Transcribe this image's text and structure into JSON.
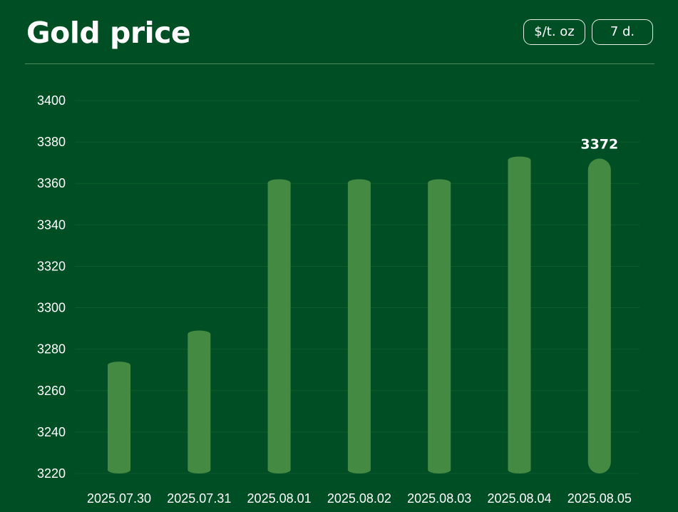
{
  "header": {
    "title": "Gold price",
    "unit_toggle": "$/t. oz",
    "range_toggle": "7 d."
  },
  "colors": {
    "background": "#004f24",
    "bar": "#458a43",
    "grid": "#0d5a2c",
    "text": "#ffffff"
  },
  "chart_data": {
    "type": "bar",
    "title": "Gold price",
    "categories": [
      "2025.07.30",
      "2025.07.31",
      "2025.08.01",
      "2025.08.02",
      "2025.08.03",
      "2025.08.04",
      "2025.08.05"
    ],
    "series": [
      {
        "values": [
          3274,
          3289,
          3362,
          3362,
          3362,
          3373,
          3372
        ]
      }
    ],
    "ylim": [
      3220,
      3400
    ],
    "yticks": [
      3220,
      3240,
      3260,
      3280,
      3300,
      3320,
      3340,
      3360,
      3380,
      3400
    ],
    "highlight": {
      "category": "2025.08.05",
      "label": "3372"
    },
    "grid": true,
    "legend": "none"
  }
}
